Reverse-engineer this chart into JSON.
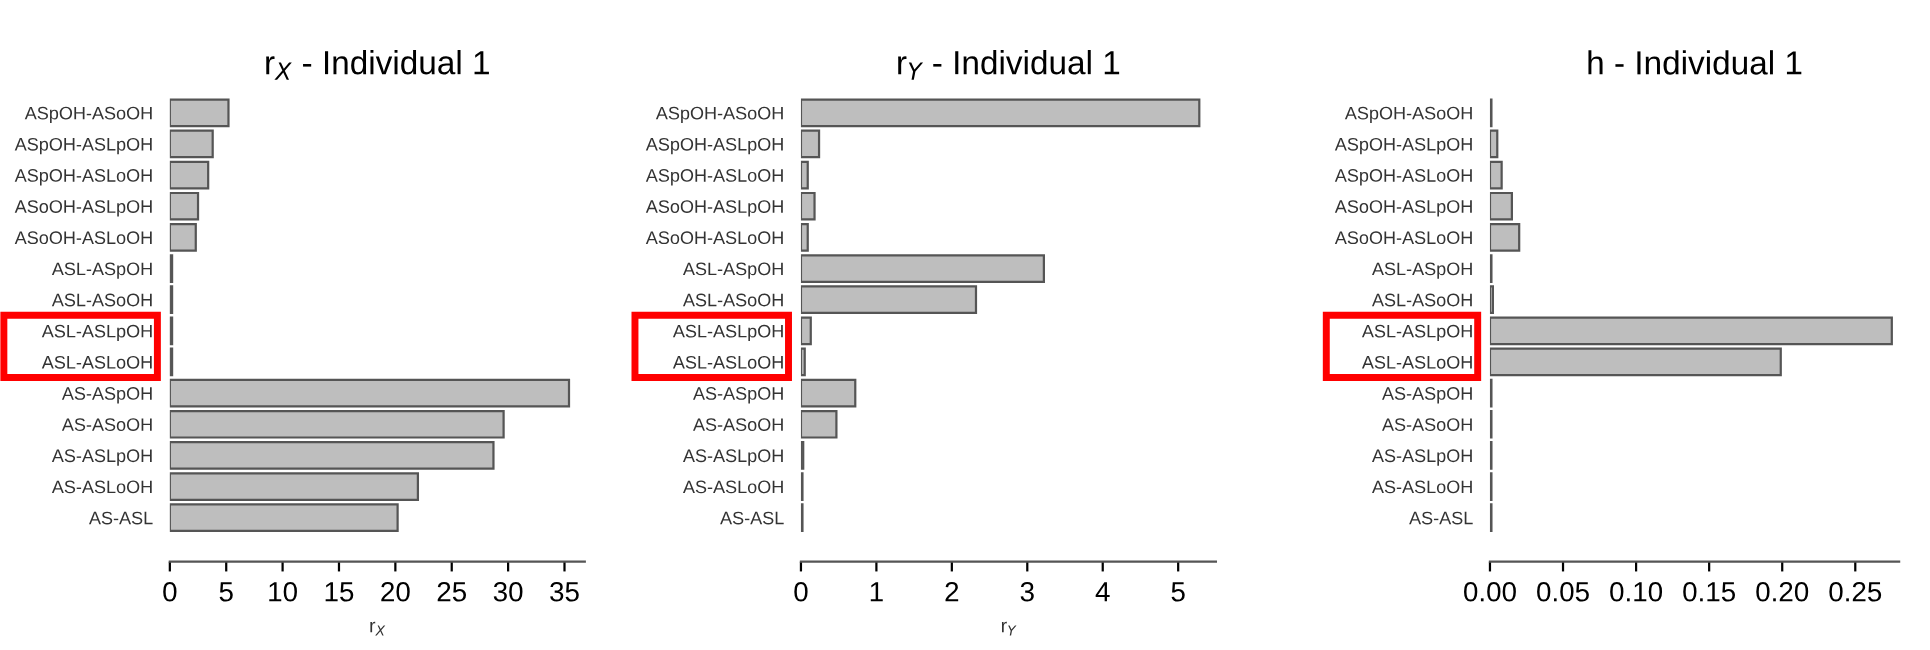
{
  "chart_data": [
    {
      "type": "bar",
      "orientation": "horizontal",
      "title": "r$_{X}$ - Individual 1",
      "xlabel": "r$_{X}$",
      "color": "#bebebe",
      "categories": [
        "ASpOH-ASoOH",
        "ASpOH-ASLpOH",
        "ASpOH-ASLoOH",
        "ASoOH-ASLpOH",
        "ASoOH-ASLoOH",
        "ASL-ASpOH",
        "ASL-ASoOH",
        "ASL-ASLpOH",
        "ASL-ASLoOH",
        "AS-ASpOH",
        "AS-ASoOH",
        "AS-ASLpOH",
        "AS-ASLoOH",
        "AS-ASL"
      ],
      "values": [
        5.2,
        3.8,
        3.4,
        2.5,
        2.3,
        0.2,
        0.2,
        0.2,
        0.2,
        35.4,
        29.6,
        28.7,
        22.0,
        20.2
      ],
      "xlim": [
        0,
        36.8
      ],
      "xticks": [
        0,
        5,
        10,
        15,
        20,
        25,
        30,
        35
      ]
    },
    {
      "type": "bar",
      "orientation": "horizontal",
      "title": "r$_{Y}$ - Individual 1",
      "xlabel": "r$_{Y}$",
      "color": "#bebebe",
      "categories": [
        "ASpOH-ASoOH",
        "ASpOH-ASLpOH",
        "ASpOH-ASLoOH",
        "ASoOH-ASLpOH",
        "ASoOH-ASLoOH",
        "ASL-ASpOH",
        "ASL-ASoOH",
        "ASL-ASLpOH",
        "ASL-ASLoOH",
        "AS-ASpOH",
        "AS-ASoOH",
        "AS-ASLpOH",
        "AS-ASLoOH",
        "AS-ASL"
      ],
      "values": [
        5.28,
        0.24,
        0.09,
        0.18,
        0.09,
        3.22,
        2.32,
        0.13,
        0.05,
        0.72,
        0.47,
        0.03,
        0.02,
        0.02
      ],
      "xlim": [
        0,
        5.5
      ],
      "xticks": [
        0,
        1,
        2,
        3,
        4,
        5
      ]
    },
    {
      "type": "bar",
      "orientation": "horizontal",
      "title": "h - Individual 1",
      "color": "#bebebe",
      "categories": [
        "ASpOH-ASoOH",
        "ASpOH-ASLpOH",
        "ASpOH-ASLoOH",
        "ASoOH-ASLpOH",
        "ASoOH-ASLoOH",
        "ASL-ASpOH",
        "ASL-ASoOH",
        "ASL-ASLpOH",
        "ASL-ASLoOH",
        "AS-ASpOH",
        "AS-ASoOH",
        "AS-ASLpOH",
        "AS-ASLoOH",
        "AS-ASL"
      ],
      "values": [
        0.001,
        0.005,
        0.008,
        0.015,
        0.02,
        0.001,
        0.002,
        0.275,
        0.199,
        0.001,
        0.001,
        0.001,
        0.001,
        0.001
      ],
      "xlim": [
        0,
        0.28
      ],
      "xticks": [
        {
          "value": 0,
          "label": "0.00"
        },
        0.05,
        {
          "value": 0.1,
          "label": "0.10"
        },
        0.15,
        {
          "value": 0.2,
          "label": "0.20"
        },
        0.25
      ]
    }
  ]
}
